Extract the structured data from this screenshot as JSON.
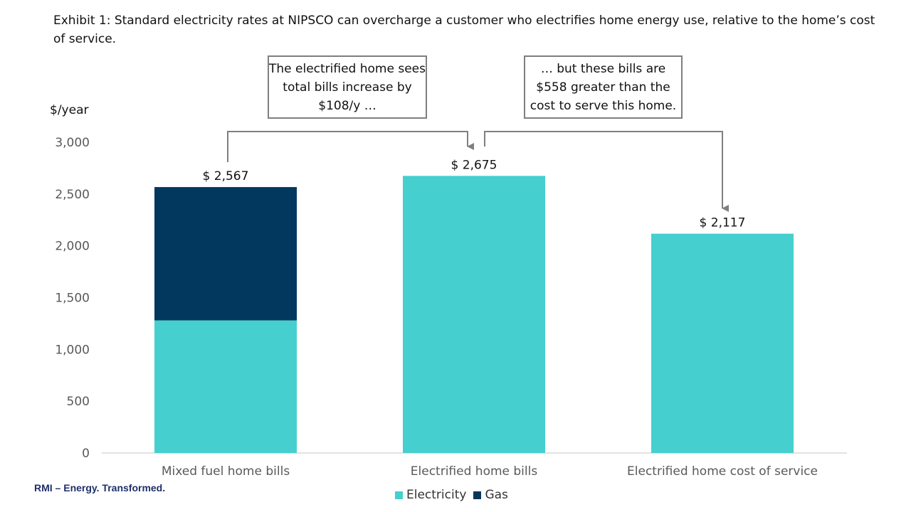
{
  "title": "Exhibit 1: Standard electricity rates at NIPSCO can overcharge a customer who electrifies home energy use, relative to the home’s cost of service.",
  "callouts": {
    "left": "The electrified home sees total bills increase by $108/y …",
    "right": "… but these bills are $558 greater than the cost to serve this home."
  },
  "footer": "RMI – Energy. Transformed.",
  "colors": {
    "electricity": "#45CFCF",
    "gas": "#02375E",
    "axis": "#D9D9D9",
    "arrow": "#7F7F7F"
  },
  "chart_data": {
    "type": "bar",
    "stacked": true,
    "categories": [
      "Mixed fuel home bills",
      "Electrified home bills",
      "Electrified home cost of service"
    ],
    "series": [
      {
        "name": "Electricity",
        "values": [
          1280,
          2675,
          2117
        ]
      },
      {
        "name": "Gas",
        "values": [
          1287,
          0,
          0
        ]
      }
    ],
    "totals": [
      2567,
      2675,
      2117
    ],
    "total_labels": [
      "$ 2,567",
      "$ 2,675",
      "$ 2,117"
    ],
    "ylabel": "$/year",
    "ylim": [
      0,
      3000
    ],
    "yticks": [
      0,
      500,
      1000,
      1500,
      2000,
      2500,
      3000
    ],
    "ytick_labels": [
      "0",
      "500",
      "1,000",
      "1,500",
      "2,000",
      "2,500",
      "3,000"
    ],
    "legend": "bottom",
    "grid": false
  }
}
